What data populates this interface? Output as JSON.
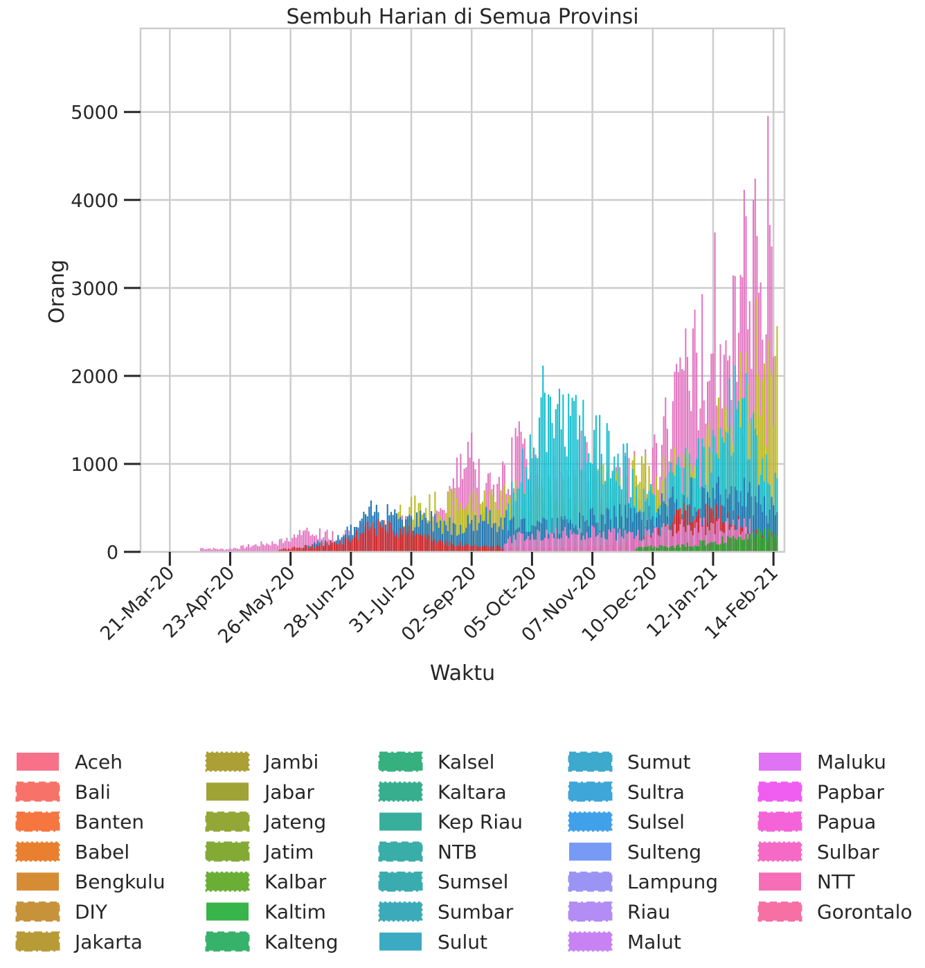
{
  "chart_data": {
    "type": "bar",
    "stacked": true,
    "title": "Sembuh Harian di Semua Provinsi",
    "xlabel": "Waktu",
    "ylabel": "Orang",
    "ylim": [
      0,
      5950
    ],
    "yticks": [
      0,
      1000,
      2000,
      3000,
      4000,
      5000
    ],
    "x_range": [
      "2020-03-05",
      "2021-02-20"
    ],
    "xticks": [
      {
        "date": "2020-03-21",
        "label": "21-Mar-20"
      },
      {
        "date": "2020-04-23",
        "label": "23-Apr-20"
      },
      {
        "date": "2020-05-26",
        "label": "26-May-20"
      },
      {
        "date": "2020-06-28",
        "label": "28-Jun-20"
      },
      {
        "date": "2020-07-31",
        "label": "31-Jul-20"
      },
      {
        "date": "2020-09-02",
        "label": "02-Sep-20"
      },
      {
        "date": "2020-10-05",
        "label": "05-Oct-20"
      },
      {
        "date": "2020-11-07",
        "label": "07-Nov-20"
      },
      {
        "date": "2020-12-10",
        "label": "10-Dec-20"
      },
      {
        "date": "2021-01-12",
        "label": "12-Jan-21"
      },
      {
        "date": "2021-02-14",
        "label": "14-Feb-21"
      }
    ],
    "grid": true,
    "legend_position": "bottom",
    "legend_columns": 5,
    "legend": [
      {
        "name": "Aceh",
        "color": "#f77189",
        "style": "solid"
      },
      {
        "name": "Bali",
        "color": "#f7736a",
        "style": "dashed"
      },
      {
        "name": "Banten",
        "color": "#f5763f",
        "style": "dashdot"
      },
      {
        "name": "Babel",
        "color": "#e8802f",
        "style": "dotted"
      },
      {
        "name": "Bengkulu",
        "color": "#d68c35",
        "style": "solid"
      },
      {
        "name": "DIY",
        "color": "#c6933b",
        "style": "dashed"
      },
      {
        "name": "Jakarta",
        "color": "#b89a36",
        "style": "dashdot"
      },
      {
        "name": "Jambi",
        "color": "#ab9f36",
        "style": "dotted"
      },
      {
        "name": "Jabar",
        "color": "#9fa336",
        "style": "solid"
      },
      {
        "name": "Jateng",
        "color": "#93a736",
        "style": "dashed"
      },
      {
        "name": "Jatim",
        "color": "#84aa36",
        "style": "dashdot"
      },
      {
        "name": "Kalbar",
        "color": "#6aae36",
        "style": "dotted"
      },
      {
        "name": "Kaltim",
        "color": "#38b54a",
        "style": "solid"
      },
      {
        "name": "Kalteng",
        "color": "#36b26b",
        "style": "dashed"
      },
      {
        "name": "Kalsel",
        "color": "#37b07f",
        "style": "dashdot"
      },
      {
        "name": "Kaltara",
        "color": "#37af8e",
        "style": "dotted"
      },
      {
        "name": "Kep Riau",
        "color": "#38ae9c",
        "style": "solid"
      },
      {
        "name": "NTB",
        "color": "#39ada7",
        "style": "dashed"
      },
      {
        "name": "Sumsel",
        "color": "#3aacb0",
        "style": "dashdot"
      },
      {
        "name": "Sumbar",
        "color": "#3babba",
        "style": "dotted"
      },
      {
        "name": "Sulut",
        "color": "#3caac2",
        "style": "solid"
      },
      {
        "name": "Sumut",
        "color": "#3da9cc",
        "style": "dashed"
      },
      {
        "name": "Sultra",
        "color": "#3ea6d8",
        "style": "dashdot"
      },
      {
        "name": "Sulsel",
        "color": "#40a1ea",
        "style": "dotted"
      },
      {
        "name": "Sulteng",
        "color": "#779af5",
        "style": "solid"
      },
      {
        "name": "Lampung",
        "color": "#9b94f4",
        "style": "dashed"
      },
      {
        "name": "Riau",
        "color": "#b38cf4",
        "style": "dashdot"
      },
      {
        "name": "Malut",
        "color": "#c882f4",
        "style": "dotted"
      },
      {
        "name": "Maluku",
        "color": "#df73f4",
        "style": "solid"
      },
      {
        "name": "Papbar",
        "color": "#f05ef1",
        "style": "dashed"
      },
      {
        "name": "Papua",
        "color": "#f464d8",
        "style": "dashdot"
      },
      {
        "name": "Sulbar",
        "color": "#f56ac7",
        "style": "dotted"
      },
      {
        "name": "NTT",
        "color": "#f56eb7",
        "style": "solid"
      },
      {
        "name": "Gorontalo",
        "color": "#f670a4",
        "style": "dashed"
      }
    ],
    "series": [
      {
        "name": "Jakarta",
        "color": "#e377c2",
        "points": [
          [
            "2020-04-07",
            60
          ],
          [
            "2020-04-20",
            40
          ],
          [
            "2020-05-01",
            80
          ],
          [
            "2020-05-10",
            120
          ],
          [
            "2020-05-20",
            150
          ],
          [
            "2020-05-30",
            270
          ],
          [
            "2020-06-08",
            300
          ],
          [
            "2020-06-20",
            250
          ],
          [
            "2020-07-01",
            330
          ],
          [
            "2020-07-10",
            380
          ],
          [
            "2020-07-20",
            420
          ],
          [
            "2020-07-30",
            450
          ],
          [
            "2020-08-10",
            580
          ],
          [
            "2020-08-20",
            700
          ],
          [
            "2020-08-30",
            1900
          ],
          [
            "2020-09-02",
            1540
          ],
          [
            "2020-09-10",
            900
          ],
          [
            "2020-09-20",
            1150
          ],
          [
            "2020-09-30",
            1620
          ],
          [
            "2020-10-08",
            1100
          ],
          [
            "2020-10-16",
            1280
          ],
          [
            "2020-10-25",
            1110
          ],
          [
            "2020-11-03",
            1480
          ],
          [
            "2020-11-12",
            1050
          ],
          [
            "2020-11-20",
            1080
          ],
          [
            "2020-11-30",
            1200
          ],
          [
            "2020-12-08",
            1250
          ],
          [
            "2020-12-16",
            1700
          ],
          [
            "2020-12-24",
            2550
          ],
          [
            "2020-12-31",
            2700
          ],
          [
            "2021-01-06",
            2950
          ],
          [
            "2021-01-12",
            3800
          ],
          [
            "2021-01-18",
            3300
          ],
          [
            "2021-01-24",
            3560
          ],
          [
            "2021-01-30",
            4580
          ],
          [
            "2021-02-04",
            4430
          ],
          [
            "2021-02-08",
            4010
          ],
          [
            "2021-02-11",
            5650
          ],
          [
            "2021-02-13",
            4760
          ],
          [
            "2021-02-14",
            3980
          ]
        ]
      },
      {
        "name": "Jabar",
        "color": "#bcbd22",
        "points": [
          [
            "2020-07-24",
            620
          ],
          [
            "2020-11-05",
            1000
          ],
          [
            "2020-11-20",
            1050
          ],
          [
            "2020-12-01",
            1130
          ],
          [
            "2020-12-16",
            1100
          ],
          [
            "2020-12-24",
            1250
          ],
          [
            "2021-01-05",
            1350
          ],
          [
            "2021-01-12",
            1600
          ],
          [
            "2021-01-20",
            2050
          ],
          [
            "2021-01-26",
            2600
          ],
          [
            "2021-02-01",
            2550
          ],
          [
            "2021-02-05",
            3150
          ],
          [
            "2021-02-08",
            2800
          ],
          [
            "2021-02-11",
            2450
          ],
          [
            "2021-02-14",
            2100
          ],
          [
            "2021-02-16",
            2700
          ]
        ]
      },
      {
        "name": "Sulut",
        "color": "#17becf",
        "points": [
          [
            "2020-10-12",
            2220
          ],
          [
            "2020-09-22",
            700
          ],
          [
            "2020-11-25",
            1290
          ],
          [
            "2020-12-05",
            800
          ],
          [
            "2021-01-10",
            1420
          ],
          [
            "2021-01-28",
            2350
          ],
          [
            "2021-02-10",
            1300
          ],
          [
            "2021-02-16",
            900
          ]
        ]
      },
      {
        "name": "Sulsel",
        "color": "#1f77b4",
        "points": [
          [
            "2020-06-01",
            60
          ],
          [
            "2020-06-20",
            200
          ],
          [
            "2020-07-01",
            380
          ],
          [
            "2020-07-10",
            620
          ],
          [
            "2020-07-20",
            680
          ],
          [
            "2020-07-30",
            450
          ],
          [
            "2020-08-10",
            500
          ],
          [
            "2020-08-25",
            400
          ],
          [
            "2020-09-10",
            520
          ],
          [
            "2020-09-25",
            460
          ],
          [
            "2020-10-10",
            390
          ],
          [
            "2020-10-25",
            430
          ],
          [
            "2020-11-10",
            520
          ],
          [
            "2020-11-25",
            560
          ],
          [
            "2020-12-10",
            620
          ],
          [
            "2020-12-20",
            760
          ],
          [
            "2021-01-01",
            900
          ],
          [
            "2021-01-12",
            880
          ],
          [
            "2021-01-24",
            920
          ],
          [
            "2021-02-05",
            780
          ],
          [
            "2021-02-16",
            600
          ]
        ]
      },
      {
        "name": "Jatim",
        "color": "#d62728",
        "points": [
          [
            "2020-05-20",
            40
          ],
          [
            "2020-06-10",
            100
          ],
          [
            "2020-06-25",
            180
          ],
          [
            "2020-07-10",
            380
          ],
          [
            "2020-07-25",
            350
          ],
          [
            "2020-08-10",
            200
          ],
          [
            "2020-08-25",
            120
          ],
          [
            "2020-09-10",
            80
          ],
          [
            "2020-10-10",
            60
          ],
          [
            "2020-11-10",
            90
          ],
          [
            "2020-12-10",
            200
          ],
          [
            "2020-12-25",
            560
          ],
          [
            "2021-01-05",
            640
          ],
          [
            "2021-01-15",
            580
          ],
          [
            "2021-01-25",
            420
          ],
          [
            "2021-02-05",
            280
          ],
          [
            "2021-02-16",
            200
          ]
        ]
      },
      {
        "name": "Jateng",
        "color": "#e377c2",
        "points": [
          [
            "2020-09-20",
            200
          ],
          [
            "2020-10-10",
            280
          ],
          [
            "2020-11-10",
            300
          ],
          [
            "2020-12-01",
            260
          ],
          [
            "2021-01-01",
            400
          ],
          [
            "2021-02-01",
            380
          ]
        ]
      },
      {
        "name": "Kaltim",
        "color": "#2ca02c",
        "points": [
          [
            "2020-12-01",
            60
          ],
          [
            "2021-01-01",
            120
          ],
          [
            "2021-01-20",
            200
          ],
          [
            "2021-02-05",
            300
          ],
          [
            "2021-02-16",
            240
          ]
        ]
      }
    ]
  }
}
